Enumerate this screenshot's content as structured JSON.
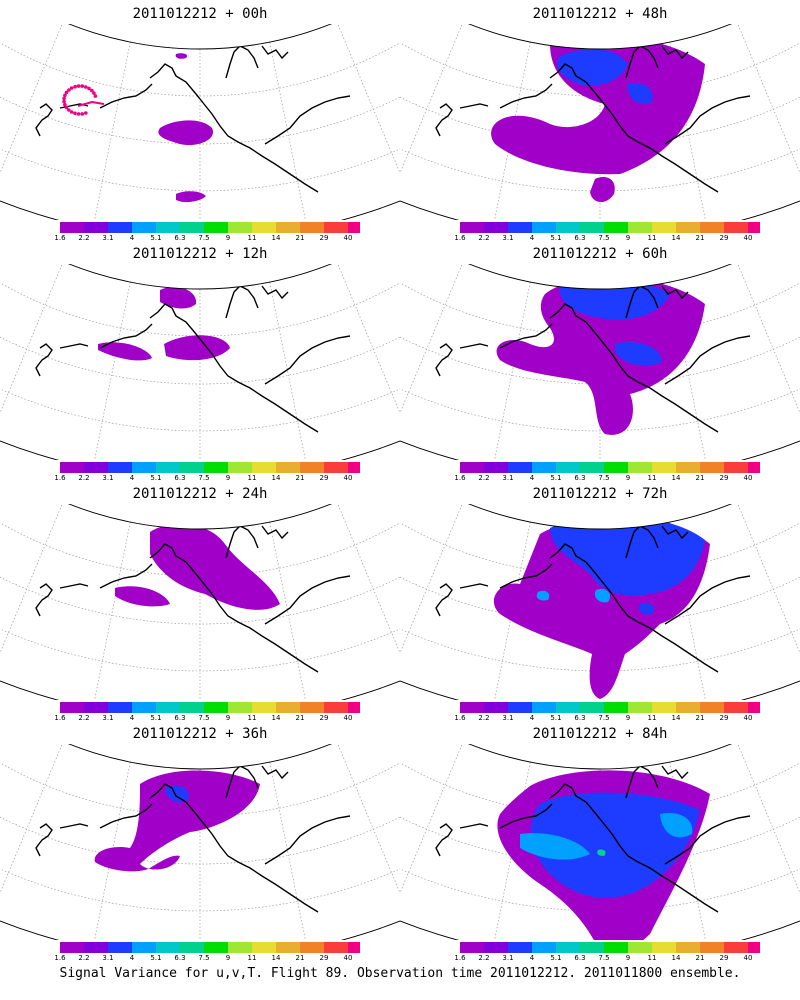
{
  "caption": "Signal Variance for u,v,T. Flight 89. Observation time 2011012212. 2011011800 ensemble.",
  "colorbar": {
    "labels": [
      "1.6",
      "2.2",
      "3.1",
      "4",
      "5.1",
      "6.3",
      "7.5",
      "9",
      "11",
      "14",
      "21",
      "29",
      "40"
    ],
    "colors": [
      "#a000c8",
      "#8200dc",
      "#1e3cff",
      "#00a0ff",
      "#00c8c8",
      "#00d28c",
      "#00dc00",
      "#a0e632",
      "#e6dc32",
      "#e6af2d",
      "#f08228",
      "#fa3c3c",
      "#f00082"
    ]
  },
  "colors": {
    "coast": "#000000",
    "grid": "#9a9a9a",
    "track": "#f00082"
  },
  "chart_data": [
    {
      "type": "heatmap",
      "title": "2011012212 + 00h",
      "variable": "signal variance",
      "colorbar": "colorbar"
    },
    {
      "type": "heatmap",
      "title": "2011012212 + 48h",
      "variable": "signal variance",
      "colorbar": "colorbar"
    },
    {
      "type": "heatmap",
      "title": "2011012212 + 12h",
      "variable": "signal variance",
      "colorbar": "colorbar"
    },
    {
      "type": "heatmap",
      "title": "2011012212 + 60h",
      "variable": "signal variance",
      "colorbar": "colorbar"
    },
    {
      "type": "heatmap",
      "title": "2011012212 + 24h",
      "variable": "signal variance",
      "colorbar": "colorbar"
    },
    {
      "type": "heatmap",
      "title": "2011012212 + 72h",
      "variable": "signal variance",
      "colorbar": "colorbar"
    },
    {
      "type": "heatmap",
      "title": "2011012212 + 36h",
      "variable": "signal variance",
      "colorbar": "colorbar"
    },
    {
      "type": "heatmap",
      "title": "2011012212 + 84h",
      "variable": "signal variance",
      "colorbar": "colorbar"
    }
  ]
}
